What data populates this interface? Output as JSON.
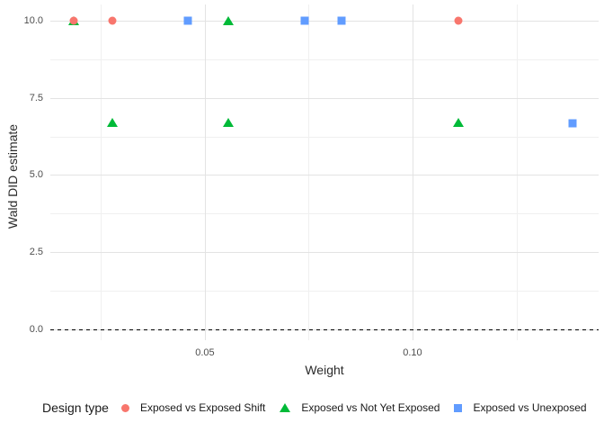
{
  "legend": {
    "title": "Design type"
  },
  "chart_data": {
    "type": "scatter",
    "title": "",
    "xlabel": "Weight",
    "ylabel": "Wald DID estimate",
    "xlim": [
      0.0128,
      0.1448
    ],
    "ylim": [
      -0.35,
      10.52
    ],
    "grid": "on",
    "legend_position": "bottom",
    "legend_title": "Design type",
    "x_ticks": [
      {
        "value": 0.05,
        "label": "0.05"
      },
      {
        "value": 0.1,
        "label": "0.10"
      }
    ],
    "y_ticks": [
      {
        "value": 0.0,
        "label": "0.0"
      },
      {
        "value": 2.5,
        "label": "2.5"
      },
      {
        "value": 5.0,
        "label": "5.0"
      },
      {
        "value": 7.5,
        "label": "7.5"
      },
      {
        "value": 10.0,
        "label": "10.0"
      }
    ],
    "x_minor": [
      0.025,
      0.075,
      0.125
    ],
    "y_minor": [
      1.25,
      3.75,
      6.25,
      8.75
    ],
    "hline": {
      "y": 0,
      "style": "dashed",
      "color": "#000000"
    },
    "series": [
      {
        "name": "Exposed vs Exposed Shift",
        "shape": "circle",
        "color": "#F8766D",
        "points": [
          [
            0.0185,
            10.0
          ],
          [
            0.0277,
            10.0
          ],
          [
            0.111,
            10.0
          ]
        ]
      },
      {
        "name": "Exposed vs Not Yet Exposed",
        "shape": "triangle",
        "color": "#00BA38",
        "points": [
          [
            0.0185,
            10.0
          ],
          [
            0.0556,
            10.0
          ],
          [
            0.0277,
            6.71
          ],
          [
            0.0556,
            6.71
          ],
          [
            0.111,
            6.71
          ]
        ]
      },
      {
        "name": "Exposed vs Unexposed",
        "shape": "square",
        "color": "#619CFF",
        "points": [
          [
            0.046,
            10.0
          ],
          [
            0.074,
            10.0
          ],
          [
            0.083,
            10.0
          ],
          [
            0.1385,
            6.68
          ]
        ]
      }
    ],
    "draw_order": [
      1,
      2,
      0
    ]
  }
}
